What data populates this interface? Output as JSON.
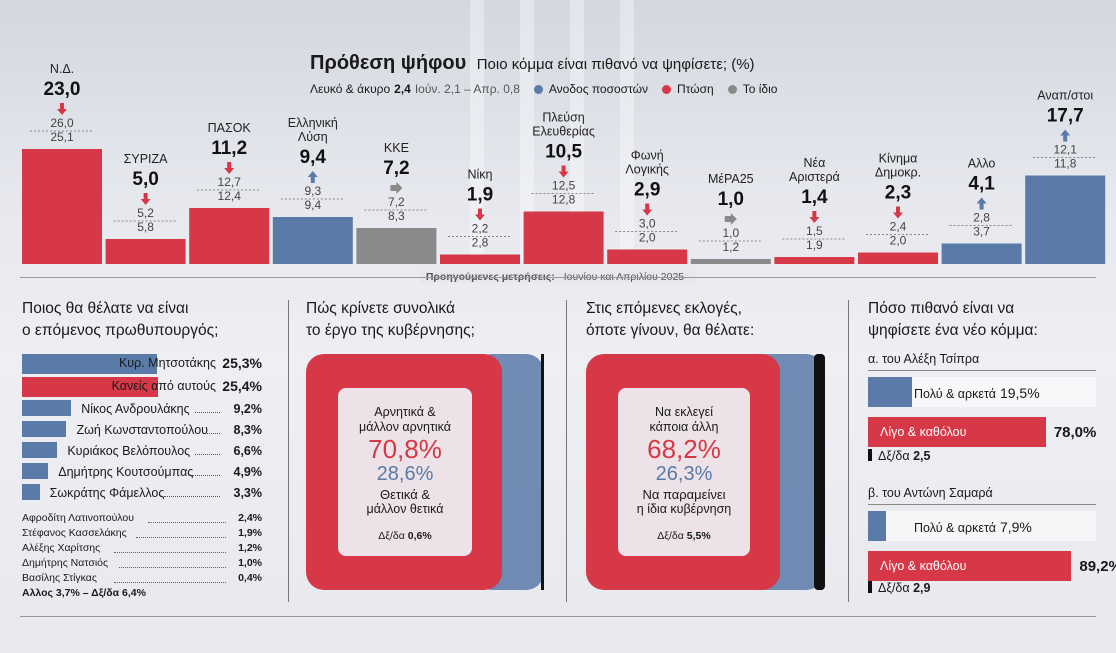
{
  "header": {
    "title": "Πρόθεση ψήφου",
    "subtitle": "Ποιο κόμμα είναι πιθανό να ψηφίσετε; (%)",
    "blank_label": "Λευκό & άκυρο",
    "blank_value": "2,4",
    "blank_prev": "Ιούν. 2,1 – Απρ. 0,8",
    "legend": [
      {
        "label": "Ανοδος ποσοστών",
        "color": "#5a7aa8"
      },
      {
        "label": "Πτώση",
        "color": "#d63847"
      },
      {
        "label": "Το ίδιο",
        "color": "#8a8a8a"
      }
    ],
    "prev_note_bold": "Προηγούμενες μετρήσεις:",
    "prev_note_text": "Ιουνίου και Απριλίου 2025"
  },
  "chart_data": {
    "type": "bar",
    "title": "Πρόθεση ψήφου",
    "categories": [
      "Ν.Δ.",
      "ΣΥΡΙΖΑ",
      "ΠΑΣΟΚ",
      "Ελληνική Λύση",
      "ΚΚΕ",
      "Νίκη",
      "Πλεύση Ελευθερίας",
      "Φωνή Λογικής",
      "ΜέΡΑ25",
      "Νέα Αριστερά",
      "Κίνημα Δημοκρ.",
      "Αλλο",
      "Αναπ/στοι"
    ],
    "label_lines": [
      [
        "Ν.Δ."
      ],
      [
        "ΣΥΡΙΖΑ"
      ],
      [
        "ΠΑΣΟΚ"
      ],
      [
        "Ελληνική",
        "Λύση"
      ],
      [
        "ΚΚΕ"
      ],
      [
        "Νίκη"
      ],
      [
        "Πλεύση",
        "Ελευθερίας"
      ],
      [
        "Φωνή",
        "Λογικής"
      ],
      [
        "ΜέΡΑ25"
      ],
      [
        "Νέα",
        "Αριστερά"
      ],
      [
        "Κίνημα",
        "Δημοκρ."
      ],
      [
        "Αλλο"
      ],
      [
        "Αναπ/στοι"
      ]
    ],
    "values": [
      23.0,
      5.0,
      11.2,
      9.4,
      7.2,
      1.9,
      10.5,
      2.9,
      1.0,
      1.4,
      2.3,
      4.1,
      17.7
    ],
    "value_labels": [
      "23,0",
      "5,0",
      "11,2",
      "9,4",
      "7,2",
      "1,9",
      "10,5",
      "2,9",
      "1,0",
      "1,4",
      "2,3",
      "4,1",
      "17,7"
    ],
    "june": [
      "26,0",
      "5,2",
      "12,7",
      "9,3",
      "7,2",
      "2,2",
      "12,5",
      "3,0",
      "1,0",
      "1,5",
      "2,4",
      "2,8",
      "12,1"
    ],
    "april": [
      "25,1",
      "5,8",
      "12,4",
      "9,4",
      "8,3",
      "2,8",
      "12,8",
      "2,0",
      "1,2",
      "1,9",
      "2,0",
      "3,7",
      "11,8"
    ],
    "trend": [
      "down",
      "down",
      "down",
      "up",
      "same",
      "down",
      "down",
      "down",
      "same",
      "down",
      "down",
      "up",
      "up"
    ],
    "colors": [
      "#d63847",
      "#d63847",
      "#d63847",
      "#5a7aa8",
      "#8a8a8a",
      "#d63847",
      "#d63847",
      "#d63847",
      "#8a8a8a",
      "#d63847",
      "#d63847",
      "#5a7aa8",
      "#5a7aa8"
    ],
    "ylim": [
      0,
      26
    ]
  },
  "pm": {
    "title1": "Ποιος θα θέλατε να είναι",
    "title2": "ο επόμενος πρωθυπουργός;",
    "rows": [
      {
        "name": "Κυρ. Μητσοτάκης",
        "value": "25,3%",
        "num": 25.3,
        "color": "#5a7aa8"
      },
      {
        "name": "Κανείς από αυτούς",
        "value": "25,4%",
        "num": 25.4,
        "color": "#d63847"
      },
      {
        "name": "Νίκος Ανδρουλάκης",
        "value": "9,2%",
        "num": 9.2,
        "color": "#5a7aa8"
      },
      {
        "name": "Ζωή Κωνσταντοπούλου",
        "value": "8,3%",
        "num": 8.3,
        "color": "#5a7aa8"
      },
      {
        "name": "Κυριάκος Βελόπουλος",
        "value": "6,6%",
        "num": 6.6,
        "color": "#5a7aa8"
      },
      {
        "name": "Δημήτρης Κουτσούμπας",
        "value": "4,9%",
        "num": 4.9,
        "color": "#5a7aa8"
      },
      {
        "name": "Σωκράτης Φάμελλος",
        "value": "3,3%",
        "num": 3.3,
        "color": "#5a7aa8"
      }
    ],
    "small": [
      {
        "name": "Αφροδίτη Λατινοπούλου",
        "value": "2,4%"
      },
      {
        "name": "Στέφανος Κασσελάκης",
        "value": "1,9%"
      },
      {
        "name": "Αλέξης Χαρίτσης",
        "value": "1,2%"
      },
      {
        "name": "Δημήτρης Νατσιός",
        "value": "1,0%"
      },
      {
        "name": "Βασίλης Στίγκας",
        "value": "0,4%"
      }
    ],
    "footer": "Αλλος 3,7% – Δξ/δα 6,4%"
  },
  "gov": {
    "title1": "Πώς κρίνετε συνολικά",
    "title2": "το έργο της κυβέρνησης;",
    "neg_label1": "Αρνητικά &",
    "neg_label2": "μάλλον αρνητικά",
    "neg_value": "70,8%",
    "neg_num": 70.8,
    "pos_value": "28,6%",
    "pos_num": 28.6,
    "pos_label1": "Θετικά &",
    "pos_label2": "μάλλον θετικά",
    "dk_label": "Δξ/δα",
    "dk_value": "0,6%",
    "dk_num": 0.6
  },
  "elect": {
    "title1": "Στις επόμενες εκλογές,",
    "title2": "όποτε γίνουν, θα θέλατε:",
    "a_label1": "Να εκλεγεί",
    "a_label2": "κάποια άλλη",
    "a_value": "68,2%",
    "a_num": 68.2,
    "b_value": "26,3%",
    "b_num": 26.3,
    "b_label1": "Να παραμείνει",
    "b_label2": "η ίδια κυβέρνηση",
    "dk_label": "Δξ/δα",
    "dk_value": "5,5%",
    "dk_num": 5.5
  },
  "newparty": {
    "title1": "Πόσο πιθανό είναι να",
    "title2": "ψηφίσετε ένα νέο κόμμα:",
    "a_title": "α. του Αλέξη Τσίπρα",
    "a_rows": [
      {
        "name": "Πολύ & αρκετά",
        "value": "19,5%",
        "num": 19.5,
        "color": "#5a7aa8"
      },
      {
        "name": "Λίγο & καθόλου",
        "value": "78,0%",
        "num": 78.0,
        "color": "#d63847"
      }
    ],
    "a_dk_label": "Δξ/δα",
    "a_dk_value": "2,5",
    "b_title": "β. του Αντώνη Σαμαρά",
    "b_rows": [
      {
        "name": "Πολύ & αρκετά",
        "value": "7,9%",
        "num": 7.9,
        "color": "#5a7aa8"
      },
      {
        "name": "Λίγο & καθόλου",
        "value": "89,2%",
        "num": 89.2,
        "color": "#d63847"
      }
    ],
    "b_dk_label": "Δξ/δα",
    "b_dk_value": "2,9"
  }
}
